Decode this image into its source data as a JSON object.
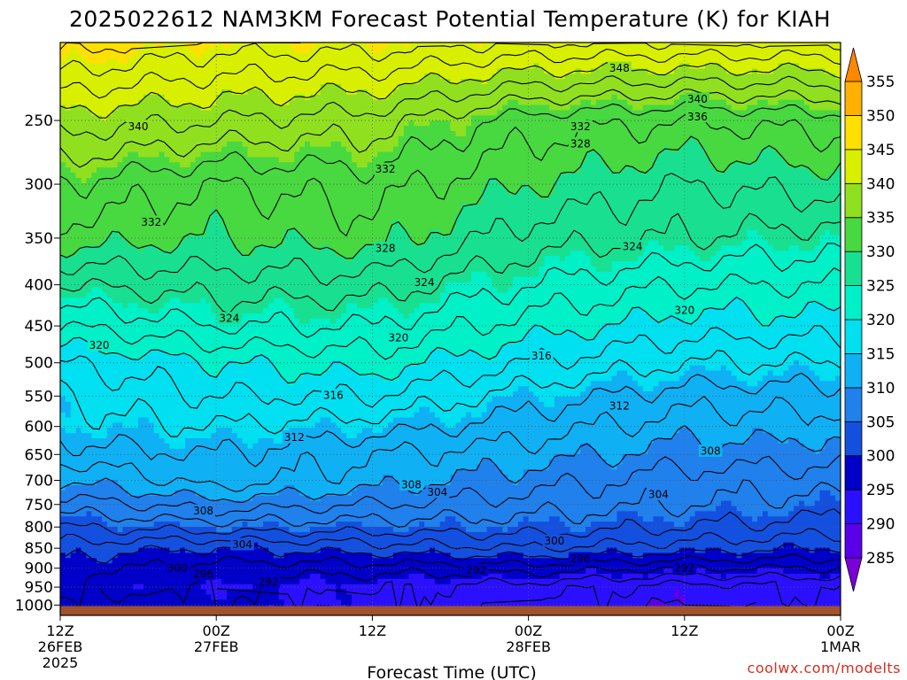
{
  "chart_data": {
    "type": "heatmap",
    "title": "2025022612 NAM3KM Forecast Potential Temperature (K) for KIAH",
    "xlabel": "Forecast Time (UTC)",
    "ylabel": "",
    "y_ticks": [
      250,
      300,
      350,
      400,
      450,
      500,
      550,
      600,
      650,
      700,
      750,
      800,
      850,
      900,
      950,
      1000
    ],
    "y_range": [
      1030,
      200
    ],
    "x_ticks": [
      {
        "hour": 0,
        "lines": [
          "12Z",
          "26FEB",
          "2025"
        ]
      },
      {
        "hour": 12,
        "lines": [
          "00Z",
          "27FEB"
        ]
      },
      {
        "hour": 24,
        "lines": [
          "12Z",
          ""
        ]
      },
      {
        "hour": 36,
        "lines": [
          "00Z",
          "28FEB"
        ]
      },
      {
        "hour": 48,
        "lines": [
          "12Z",
          ""
        ]
      },
      {
        "hour": 60,
        "lines": [
          "00Z",
          "1MAR"
        ]
      }
    ],
    "x_range": [
      0,
      60
    ],
    "colorbar": {
      "levels": [
        285,
        290,
        295,
        300,
        305,
        310,
        315,
        320,
        325,
        330,
        335,
        340,
        345,
        350,
        355
      ],
      "colors": [
        "#7a00d8",
        "#5a00e8",
        "#2a10ff",
        "#0000c8",
        "#1450e0",
        "#2080ec",
        "#10b0f4",
        "#00e0f0",
        "#00f0c8",
        "#18e090",
        "#48d840",
        "#90e020",
        "#d8f000",
        "#ffe000",
        "#ffb000",
        "#ff8800"
      ]
    },
    "contour_interval": 2,
    "profiles": {
      "pressure": [
        1000,
        950,
        900,
        850,
        800,
        750,
        700,
        650,
        600,
        550,
        500,
        450,
        400,
        350,
        300,
        250,
        200
      ],
      "hours": [
        0,
        12,
        24,
        36,
        48,
        60
      ],
      "theta": [
        [
          298,
          296,
          299,
          301,
          304,
          307,
          310,
          313,
          315,
          316,
          318,
          322,
          326,
          331,
          334,
          339,
          347
        ],
        [
          296,
          295,
          297,
          300,
          305,
          309,
          313,
          314,
          316,
          318,
          320,
          324,
          327,
          330,
          332,
          338,
          345
        ],
        [
          294,
          294,
          297,
          301,
          305,
          308,
          311,
          312,
          315,
          318,
          321,
          324,
          327,
          331,
          333,
          337,
          345
        ],
        [
          292,
          293,
          297,
          302,
          305,
          307,
          309,
          311,
          313,
          315,
          318,
          321,
          324,
          327,
          330,
          333,
          344
        ],
        [
          290,
          291,
          296,
          301,
          304,
          306,
          307,
          309,
          311,
          313,
          316,
          319,
          322,
          326,
          328,
          332,
          344
        ],
        [
          292,
          292,
          296,
          300,
          303,
          305,
          307,
          309,
          311,
          313,
          316,
          319,
          322,
          325,
          329,
          333,
          344
        ]
      ]
    },
    "contour_labels": [
      {
        "text": "348",
        "hour": 43,
        "p": 215
      },
      {
        "text": "340",
        "hour": 49,
        "p": 235
      },
      {
        "text": "336",
        "hour": 49,
        "p": 247
      },
      {
        "text": "340",
        "hour": 6,
        "p": 254
      },
      {
        "text": "332",
        "hour": 40,
        "p": 254
      },
      {
        "text": "328",
        "hour": 40,
        "p": 267
      },
      {
        "text": "332",
        "hour": 25,
        "p": 287
      },
      {
        "text": "332",
        "hour": 7,
        "p": 334
      },
      {
        "text": "328",
        "hour": 25,
        "p": 360
      },
      {
        "text": "324",
        "hour": 44,
        "p": 358
      },
      {
        "text": "324",
        "hour": 28,
        "p": 397
      },
      {
        "text": "324",
        "hour": 13,
        "p": 440
      },
      {
        "text": "320",
        "hour": 48,
        "p": 430
      },
      {
        "text": "320",
        "hour": 26,
        "p": 465
      },
      {
        "text": "320",
        "hour": 3,
        "p": 475
      },
      {
        "text": "316",
        "hour": 37,
        "p": 490
      },
      {
        "text": "316",
        "hour": 21,
        "p": 548
      },
      {
        "text": "312",
        "hour": 43,
        "p": 565
      },
      {
        "text": "312",
        "hour": 18,
        "p": 618
      },
      {
        "text": "308",
        "hour": 50,
        "p": 643
      },
      {
        "text": "308",
        "hour": 27,
        "p": 708
      },
      {
        "text": "304",
        "hour": 29,
        "p": 723
      },
      {
        "text": "304",
        "hour": 46,
        "p": 728
      },
      {
        "text": "308",
        "hour": 11,
        "p": 763
      },
      {
        "text": "304",
        "hour": 14,
        "p": 840
      },
      {
        "text": "300",
        "hour": 38,
        "p": 832
      },
      {
        "text": "296",
        "hour": 40,
        "p": 875
      },
      {
        "text": "292",
        "hour": 48,
        "p": 898
      },
      {
        "text": "292",
        "hour": 32,
        "p": 904
      },
      {
        "text": "300",
        "hour": 9,
        "p": 898
      },
      {
        "text": "296",
        "hour": 11,
        "p": 914
      },
      {
        "text": "292",
        "hour": 16,
        "p": 936
      }
    ]
  },
  "credit": "coolwx.com/modelts"
}
